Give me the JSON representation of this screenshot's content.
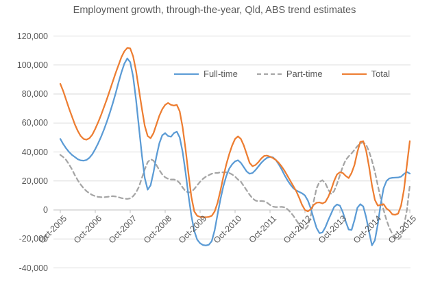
{
  "colors": {
    "text": "#595959",
    "gridline": "#D9D9D9",
    "axis_line": "#BFBFBF",
    "background": "#FFFFFF",
    "full_time": "#5B9BD5",
    "part_time": "#A5A5A5",
    "total": "#ED7D31"
  },
  "chart_data": {
    "type": "line",
    "title": "Employment growth, through-the-year, Qld, ABS trend estimates",
    "xlabel": "",
    "ylabel": "",
    "x_start": "Oct-2005",
    "x_end": "Oct-2015",
    "frequency": "monthly",
    "n_points": 121,
    "grid": "horizontal",
    "legend_position": "top-inside",
    "ylim": [
      -40000,
      120000
    ],
    "y_step": 20000,
    "y_ticks": [
      120000,
      100000,
      80000,
      60000,
      40000,
      20000,
      0,
      -20000,
      -40000
    ],
    "y_tick_labels": [
      "120,000",
      "100,000",
      "80,000",
      "60,000",
      "40,000",
      "20,000",
      "0",
      "-20,000",
      "-40,000"
    ],
    "x_tick_labels": [
      "Oct-2005",
      "Oct-2006",
      "Oct-2007",
      "Oct-2008",
      "Oct-2009",
      "Oct-2010",
      "Oct-2011",
      "Oct-2012",
      "Oct-2013",
      "Oct-2014",
      "Oct-2015"
    ],
    "x_tick_month_indices": [
      0,
      12,
      24,
      36,
      48,
      60,
      72,
      84,
      96,
      108,
      120
    ],
    "series": [
      {
        "name": "Full-time",
        "color": "#5B9BD5",
        "style": "solid",
        "values": [
          49000,
          45500,
          42500,
          40000,
          38000,
          36500,
          35000,
          34200,
          34000,
          34500,
          36000,
          38500,
          42000,
          46000,
          50500,
          55500,
          61000,
          67000,
          73500,
          80500,
          88000,
          95000,
          101000,
          104500,
          102000,
          92000,
          76000,
          57000,
          38000,
          22000,
          14000,
          17000,
          26000,
          37000,
          46000,
          51500,
          53000,
          51000,
          50500,
          53000,
          54000,
          50000,
          40000,
          26000,
          10000,
          -4000,
          -14500,
          -20500,
          -23000,
          -24200,
          -24500,
          -24000,
          -21500,
          -14000,
          -3000,
          7500,
          16500,
          23500,
          28500,
          31500,
          33500,
          34300,
          32500,
          29500,
          26500,
          25000,
          25500,
          27500,
          30000,
          32500,
          34500,
          36000,
          36600,
          36300,
          34500,
          31500,
          28000,
          24000,
          20500,
          17500,
          15000,
          13500,
          12500,
          11500,
          10000,
          6500,
          1000,
          -6000,
          -12500,
          -16000,
          -15500,
          -12000,
          -7000,
          -2500,
          2000,
          3800,
          3000,
          -1500,
          -8000,
          -13500,
          -13800,
          -7000,
          1500,
          4000,
          2500,
          -5000,
          -15000,
          -24400,
          -21000,
          -10000,
          4000,
          15000,
          20000,
          21800,
          22200,
          22300,
          22400,
          23000,
          24800,
          26200,
          25100
        ]
      },
      {
        "name": "Part-time",
        "color": "#A5A5A5",
        "style": "dashed",
        "values": [
          38000,
          36500,
          34500,
          31500,
          28000,
          24000,
          20500,
          17500,
          15000,
          13000,
          11500,
          10300,
          9500,
          9000,
          8800,
          8800,
          9000,
          9300,
          9500,
          9300,
          8800,
          8200,
          7800,
          7600,
          8000,
          9500,
          12000,
          16000,
          22000,
          28000,
          33000,
          35000,
          34000,
          31000,
          27500,
          24500,
          22500,
          21500,
          21000,
          21000,
          20500,
          18500,
          15500,
          13000,
          12000,
          12500,
          14500,
          17000,
          19500,
          21500,
          23000,
          24000,
          25000,
          25500,
          25500,
          26000,
          26000,
          26000,
          25500,
          24500,
          23000,
          21000,
          19500,
          16500,
          13500,
          10500,
          8000,
          6500,
          6000,
          6200,
          6000,
          5000,
          3500,
          2300,
          2000,
          2000,
          2200,
          1800,
          500,
          -1500,
          -4000,
          -7000,
          -10000,
          -12500,
          -13500,
          -11000,
          -4000,
          6000,
          15000,
          19500,
          20500,
          18500,
          14000,
          11000,
          13000,
          18000,
          24000,
          30000,
          34500,
          37000,
          39000,
          41500,
          44000,
          46000,
          46600,
          45000,
          40500,
          34000,
          26500,
          17000,
          8000,
          0,
          -7000,
          -12500,
          -16500,
          -19500,
          -20400,
          -18500,
          -11000,
          0,
          17000
        ]
      },
      {
        "name": "Total",
        "color": "#ED7D31",
        "style": "solid",
        "values": [
          87000,
          82000,
          76000,
          70000,
          64500,
          59000,
          54500,
          51000,
          49000,
          48500,
          49500,
          52000,
          56000,
          60500,
          65500,
          71000,
          76500,
          82500,
          88500,
          94500,
          100000,
          105500,
          109500,
          111800,
          111500,
          106000,
          96000,
          83000,
          70000,
          58000,
          51000,
          49500,
          53000,
          59000,
          65000,
          69500,
          72500,
          73800,
          72500,
          72000,
          72500,
          68000,
          57000,
          42000,
          25000,
          9000,
          -1000,
          -4000,
          -4800,
          -5000,
          -5000,
          -4800,
          -4000,
          -1000,
          5000,
          13500,
          23000,
          31500,
          38500,
          44500,
          49000,
          50800,
          49000,
          44500,
          38500,
          32500,
          30200,
          31000,
          33000,
          35500,
          37300,
          37500,
          36800,
          35800,
          34500,
          32500,
          30000,
          27000,
          23500,
          20000,
          16500,
          13000,
          8500,
          3500,
          0,
          -1000,
          500,
          3500,
          5000,
          5200,
          4500,
          5500,
          9000,
          14000,
          20000,
          24500,
          26000,
          25500,
          23500,
          22000,
          25500,
          31000,
          40000,
          47000,
          47500,
          41000,
          30000,
          17000,
          7000,
          3000,
          3500,
          4000,
          1000,
          -500,
          -3000,
          -3300,
          -2500,
          3000,
          14000,
          31000,
          47500
        ]
      }
    ]
  }
}
